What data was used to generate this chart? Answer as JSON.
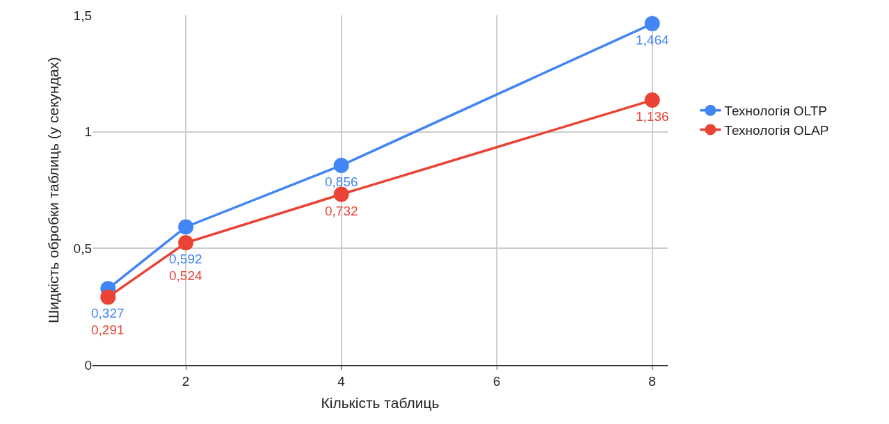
{
  "chart_data": {
    "type": "line",
    "xlabel": "Кількість таблиць",
    "ylabel": "Шидкість обробки таблиць (у секундах)",
    "x": [
      1,
      2,
      4,
      8
    ],
    "series": [
      {
        "name": "Технологія OLTP",
        "color": "#4285f4",
        "values": [
          0.327,
          0.592,
          0.856,
          1.464
        ],
        "value_labels": [
          "0,327",
          "0,592",
          "0,856",
          "1,464"
        ]
      },
      {
        "name": "Технологія OLAP",
        "color": "#ea4335",
        "values": [
          0.291,
          0.524,
          0.732,
          1.136
        ],
        "value_labels": [
          "0,291",
          "0,524",
          "0,732",
          "1,136"
        ]
      }
    ],
    "xlim": [
      0.8,
      8.2
    ],
    "xticks": [
      2,
      4,
      6,
      8
    ],
    "ylim": [
      0,
      1.5
    ],
    "yticks": [
      0,
      {
        "value": 0.5,
        "label": "0,5"
      },
      1,
      {
        "value": 1.5,
        "label": "1,5"
      }
    ],
    "grid": true,
    "legend": "right",
    "marker": "circle",
    "line_style": "solid"
  }
}
